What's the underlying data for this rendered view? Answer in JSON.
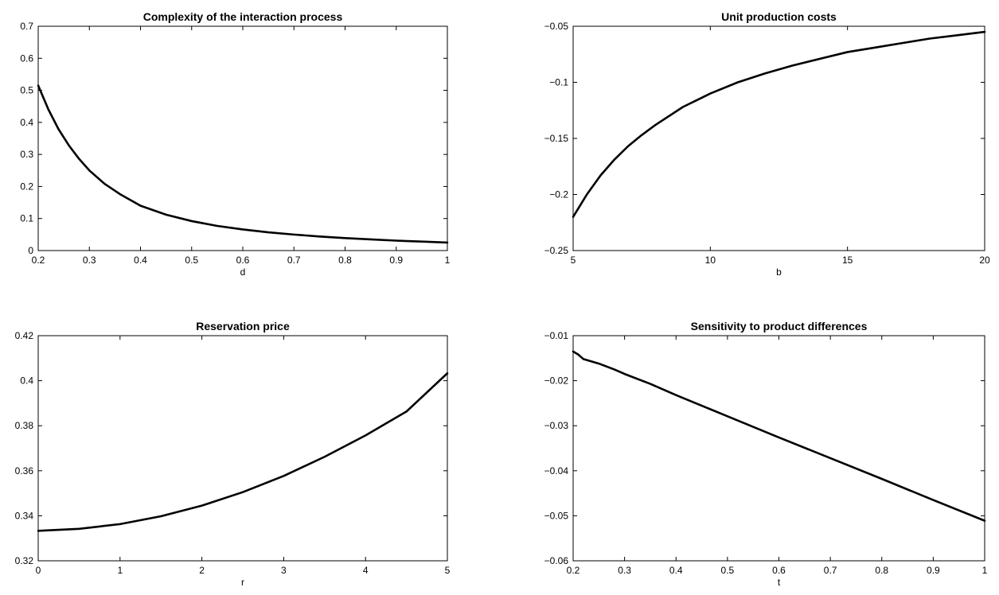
{
  "chart_data": [
    {
      "type": "line",
      "title": "Complexity of the interaction process",
      "xlabel": "d",
      "ylabel": "",
      "xlim": [
        0.2,
        1
      ],
      "ylim": [
        0,
        0.7
      ],
      "xticks": [
        "0.2",
        "0.3",
        "0.4",
        "0.5",
        "0.6",
        "0.7",
        "0.8",
        "0.9",
        "1"
      ],
      "yticks": [
        "0",
        "0.1",
        "0.2",
        "0.3",
        "0.4",
        "0.5",
        "0.6",
        "0.7"
      ],
      "grid": false,
      "series": [
        {
          "x": [
            0.2,
            0.22,
            0.24,
            0.26,
            0.28,
            0.3,
            0.33,
            0.36,
            0.4,
            0.45,
            0.5,
            0.55,
            0.6,
            0.65,
            0.7,
            0.75,
            0.8,
            0.85,
            0.9,
            0.95,
            1.0
          ],
          "values": [
            0.515,
            0.44,
            0.378,
            0.328,
            0.286,
            0.25,
            0.208,
            0.176,
            0.14,
            0.112,
            0.092,
            0.077,
            0.066,
            0.057,
            0.05,
            0.044,
            0.039,
            0.035,
            0.031,
            0.028,
            0.025
          ]
        }
      ]
    },
    {
      "type": "line",
      "title": "Unit production costs",
      "xlabel": "b",
      "ylabel": "",
      "xlim": [
        5,
        20
      ],
      "ylim": [
        -0.25,
        -0.05
      ],
      "xticks": [
        "5",
        "10",
        "15",
        "20"
      ],
      "yticks": [
        "−0.25",
        "−0.2",
        "−0.15",
        "−0.1",
        "−0.05"
      ],
      "grid": false,
      "series": [
        {
          "x": [
            5,
            5.5,
            6,
            6.5,
            7,
            7.5,
            8,
            9,
            10,
            11,
            12,
            13,
            14,
            15,
            16,
            17,
            18,
            19,
            20
          ],
          "values": [
            -0.22,
            -0.2,
            -0.183,
            -0.169,
            -0.157,
            -0.147,
            -0.138,
            -0.122,
            -0.11,
            -0.1,
            -0.092,
            -0.085,
            -0.079,
            -0.073,
            -0.069,
            -0.065,
            -0.061,
            -0.058,
            -0.055
          ]
        }
      ]
    },
    {
      "type": "line",
      "title": "Reservation price",
      "xlabel": "r",
      "ylabel": "",
      "xlim": [
        0,
        5
      ],
      "ylim": [
        0.32,
        0.42
      ],
      "xticks": [
        "0",
        "1",
        "2",
        "3",
        "4",
        "5"
      ],
      "yticks": [
        "0.32",
        "0.34",
        "0.36",
        "0.38",
        "0.4",
        "0.42"
      ],
      "grid": false,
      "series": [
        {
          "x": [
            0,
            0.5,
            1,
            1.5,
            2,
            2.5,
            3,
            3.5,
            4,
            4.5,
            5
          ],
          "values": [
            0.3333,
            0.3342,
            0.3363,
            0.3398,
            0.3445,
            0.3505,
            0.3577,
            0.3662,
            0.3757,
            0.3863,
            0.4033
          ]
        }
      ]
    },
    {
      "type": "line",
      "title": "Sensitivity to product differences",
      "xlabel": "t",
      "ylabel": "",
      "xlim": [
        0.2,
        1
      ],
      "ylim": [
        -0.06,
        -0.01
      ],
      "xticks": [
        "0.2",
        "0.3",
        "0.4",
        "0.5",
        "0.6",
        "0.7",
        "0.8",
        "0.9",
        "1"
      ],
      "yticks": [
        "−0.06",
        "−0.05",
        "−0.04",
        "−0.03",
        "−0.02",
        "−0.01"
      ],
      "grid": false,
      "series": [
        {
          "x": [
            0.2,
            0.21,
            0.22,
            0.25,
            0.28,
            0.3,
            0.35,
            0.4,
            0.5,
            0.6,
            0.7,
            0.8,
            0.9,
            1.0
          ],
          "values": [
            -0.0135,
            -0.0142,
            -0.0152,
            -0.0162,
            -0.0175,
            -0.0185,
            -0.0207,
            -0.0232,
            -0.0279,
            -0.0326,
            -0.0372,
            -0.0418,
            -0.0465,
            -0.0511
          ]
        }
      ]
    }
  ]
}
